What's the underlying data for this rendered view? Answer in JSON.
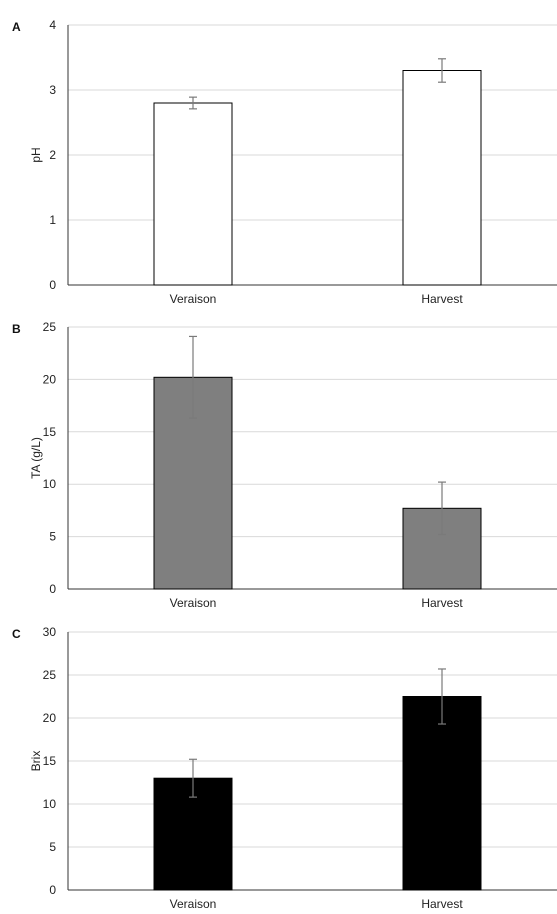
{
  "chart_data": [
    {
      "type": "bar",
      "panel_label": "A",
      "ylabel": "pH",
      "categories": [
        "Veraison",
        "Harvest"
      ],
      "values": [
        2.8,
        3.3
      ],
      "errors": [
        0.09,
        0.18
      ],
      "ylim": [
        0,
        4
      ],
      "yticks": [
        0,
        1,
        2,
        3,
        4
      ],
      "bar_fill": "#ffffff",
      "grid": true
    },
    {
      "type": "bar",
      "panel_label": "B",
      "ylabel": "TA (g/L)",
      "categories": [
        "Veraison",
        "Harvest"
      ],
      "values": [
        20.2,
        7.7
      ],
      "errors": [
        3.9,
        2.5
      ],
      "ylim": [
        0,
        25
      ],
      "yticks": [
        0,
        5,
        10,
        15,
        20,
        25
      ],
      "bar_fill": "#7f7f7f",
      "grid": true
    },
    {
      "type": "bar",
      "panel_label": "C",
      "ylabel": "Brix",
      "categories": [
        "Veraison",
        "Harvest"
      ],
      "values": [
        13.0,
        22.5
      ],
      "errors": [
        2.2,
        3.2
      ],
      "ylim": [
        0,
        30
      ],
      "yticks": [
        0,
        5,
        10,
        15,
        20,
        25,
        30
      ],
      "bar_fill": "#000000",
      "grid": true
    }
  ]
}
